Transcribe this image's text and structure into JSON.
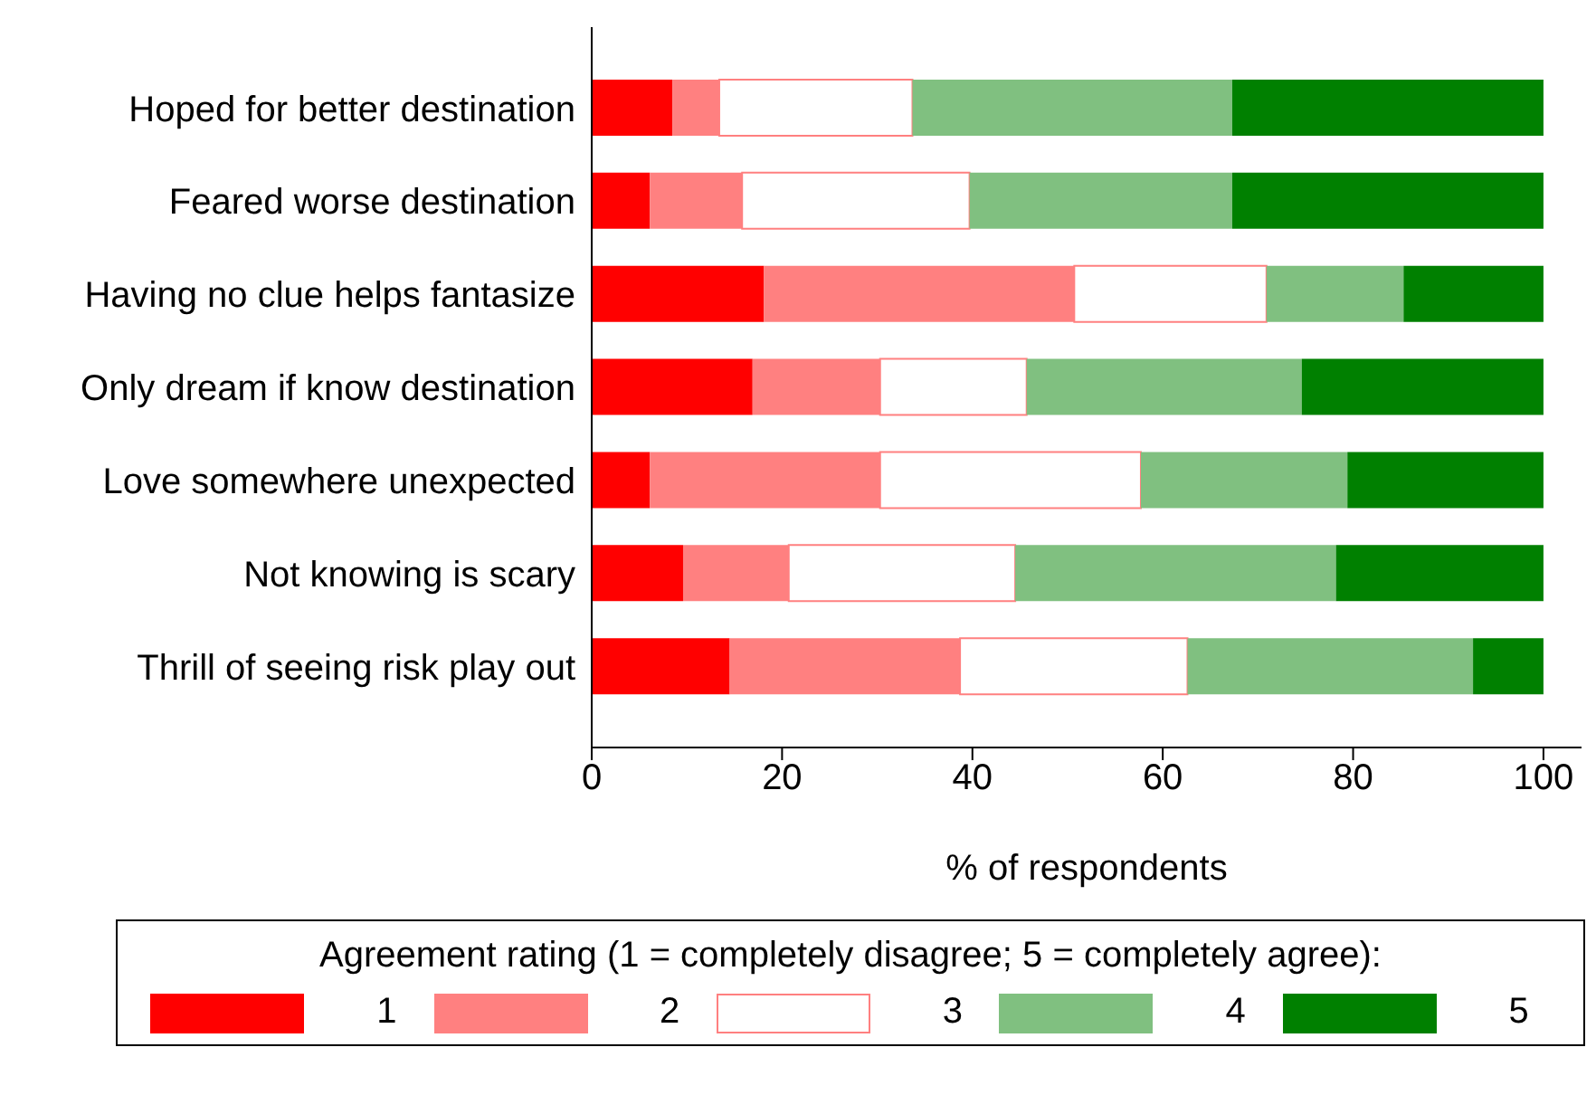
{
  "chart_data": {
    "type": "bar",
    "orientation": "horizontal",
    "stacked": true,
    "categories": [
      "Hoped for better destination",
      "Feared worse destination",
      "Having no clue helps fantasize",
      "Only dream if know destination",
      "Love somewhere unexpected",
      "Not knowing is scary",
      "Thrill of seeing risk play out"
    ],
    "series": [
      {
        "name": "1",
        "color": "#ff0000",
        "values": [
          8.5,
          6.1,
          18.1,
          16.9,
          6.1,
          9.6,
          14.5
        ]
      },
      {
        "name": "2",
        "color": "#ff8080",
        "values": [
          4.9,
          9.7,
          32.6,
          13.4,
          24.2,
          11.1,
          24.2
        ]
      },
      {
        "name": "3",
        "color": "#ffffff",
        "values": [
          20.3,
          23.9,
          20.2,
          15.4,
          27.4,
          23.8,
          23.9
        ]
      },
      {
        "name": "4",
        "color": "#80c080",
        "values": [
          33.6,
          27.6,
          14.4,
          28.9,
          21.7,
          33.7,
          30.0
        ]
      },
      {
        "name": "5",
        "color": "#008000",
        "values": [
          32.7,
          32.7,
          14.7,
          25.4,
          20.6,
          21.8,
          7.4
        ]
      }
    ],
    "xlim": [
      0,
      104
    ],
    "xticks": [
      0,
      20,
      40,
      60,
      80,
      100
    ],
    "xlabel": "% of respondents",
    "legend": "bottom",
    "legend_title": "Agreement rating (1 = completely disagree; 5 = completely agree):",
    "grid": false
  }
}
